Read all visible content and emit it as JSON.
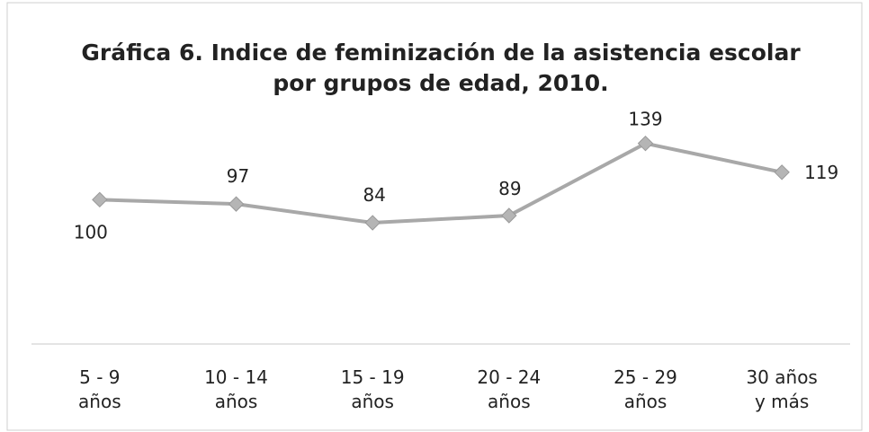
{
  "chart_data": {
    "type": "line",
    "title": "Gráfica 6. Indice de feminización de la asistencia escolar\npor grupos de edad, 2010.",
    "categories": [
      "5 - 9\naños",
      "10 - 14\naños",
      "15 - 19\naños",
      "20 - 24\naños",
      "25 - 29\naños",
      "30 años\ny más"
    ],
    "values": [
      100,
      97,
      84,
      89,
      139,
      119
    ],
    "color": "#a8a8a8",
    "ylim": [
      0,
      150
    ]
  }
}
